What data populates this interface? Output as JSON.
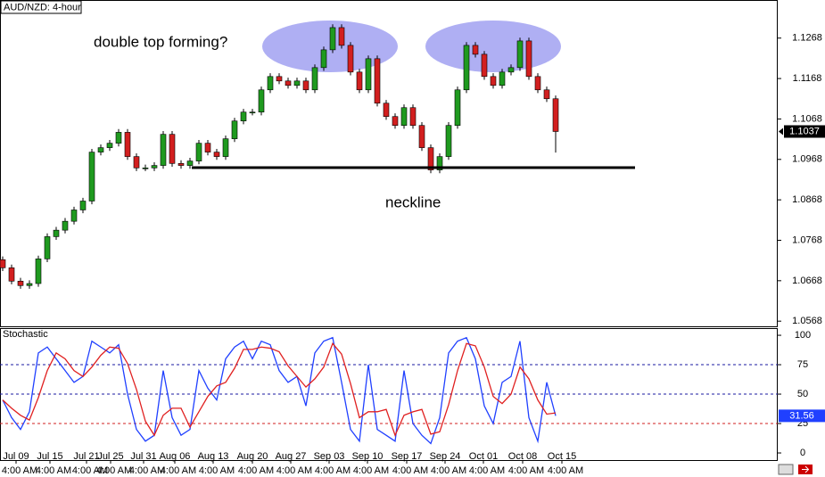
{
  "chart_data": [
    {
      "type": "candlestick",
      "title": "AUD/NZD: 4-hour",
      "annotations": [
        "double top forming?",
        "neckline"
      ],
      "up_color": "#1f9a1f",
      "down_color": "#d21f1f",
      "xlim": [
        -0.3,
        86.9
      ],
      "ylim": [
        1.0553,
        1.136
      ],
      "yticks": [
        1.1268,
        1.1168,
        1.1068,
        1.0968,
        1.0868,
        1.0768,
        1.0668,
        1.0568
      ],
      "open": [
        1.072,
        1.07,
        1.0667,
        1.0656,
        1.0661,
        1.0722,
        1.0777,
        1.0793,
        1.0815,
        1.0843,
        1.0865,
        1.0986,
        1.0997,
        1.1008,
        1.1035,
        1.0975,
        1.0947,
        1.0947,
        1.0953,
        1.103,
        1.0958,
        1.0953,
        1.0964,
        1.1008,
        1.0986,
        1.0975,
        1.1019,
        1.1063,
        1.1085,
        1.1085,
        1.114,
        1.1173,
        1.1162,
        1.1151,
        1.1162,
        1.114,
        1.1195,
        1.1239,
        1.1294,
        1.125,
        1.1184,
        1.114,
        1.1217,
        1.1107,
        1.1074,
        1.1052,
        1.1096,
        1.1052,
        1.0997,
        1.0942,
        1.0975,
        1.1052,
        1.114,
        1.125,
        1.1228,
        1.1173,
        1.1151,
        1.1184,
        1.1195,
        1.1261,
        1.1173,
        1.114,
        1.1118
      ],
      "high": [
        1.0728,
        1.0708,
        1.0675,
        1.0669,
        1.073,
        1.0785,
        1.0801,
        1.0823,
        1.0851,
        1.0873,
        1.0994,
        1.1005,
        1.1016,
        1.1043,
        1.1043,
        1.0983,
        1.0955,
        1.0961,
        1.1038,
        1.1038,
        1.0966,
        1.0972,
        1.1016,
        1.1016,
        1.0994,
        1.1027,
        1.1071,
        1.1093,
        1.1093,
        1.1148,
        1.1181,
        1.1181,
        1.117,
        1.117,
        1.117,
        1.1203,
        1.1247,
        1.1302,
        1.1302,
        1.1258,
        1.1192,
        1.1225,
        1.1225,
        1.1115,
        1.1082,
        1.1104,
        1.1104,
        1.106,
        1.1005,
        1.0983,
        1.106,
        1.1148,
        1.1258,
        1.1258,
        1.1236,
        1.1181,
        1.1192,
        1.1203,
        1.1269,
        1.1269,
        1.1181,
        1.1148,
        1.1126
      ],
      "low": [
        1.0692,
        1.0659,
        1.0648,
        1.0648,
        1.0653,
        1.0714,
        1.0769,
        1.0785,
        1.0807,
        1.0835,
        1.0857,
        1.0978,
        1.0989,
        1.1,
        1.0967,
        1.0939,
        1.0939,
        1.0939,
        1.0945,
        1.095,
        1.0945,
        1.0945,
        1.0956,
        1.0978,
        1.0967,
        1.0967,
        1.1011,
        1.1055,
        1.1077,
        1.1077,
        1.1132,
        1.1154,
        1.1143,
        1.1143,
        1.1132,
        1.1132,
        1.1187,
        1.1231,
        1.1242,
        1.1176,
        1.1132,
        1.1132,
        1.1099,
        1.1066,
        1.1044,
        1.1044,
        1.1044,
        1.0989,
        1.0934,
        1.0934,
        1.0967,
        1.1044,
        1.1132,
        1.122,
        1.1165,
        1.1143,
        1.1143,
        1.1176,
        1.1187,
        1.1165,
        1.1132,
        1.111,
        1.0985
      ],
      "close": [
        1.07,
        1.0667,
        1.0656,
        1.0661,
        1.0722,
        1.0777,
        1.0793,
        1.0815,
        1.0843,
        1.0865,
        1.0986,
        1.0997,
        1.1008,
        1.1035,
        1.0975,
        1.0947,
        1.0947,
        1.0953,
        1.103,
        1.0958,
        1.0953,
        1.0964,
        1.1008,
        1.0986,
        1.0975,
        1.1019,
        1.1063,
        1.1085,
        1.1085,
        1.114,
        1.1173,
        1.1162,
        1.1151,
        1.1162,
        1.114,
        1.1195,
        1.1239,
        1.1294,
        1.125,
        1.1184,
        1.114,
        1.1217,
        1.1107,
        1.1074,
        1.1052,
        1.1096,
        1.1052,
        1.0997,
        1.0942,
        1.0975,
        1.1052,
        1.114,
        1.125,
        1.1228,
        1.1173,
        1.1151,
        1.1184,
        1.1195,
        1.1261,
        1.1173,
        1.114,
        1.1118,
        1.1037
      ]
    },
    {
      "type": "line",
      "title": "Stochastic",
      "xlim": [
        -0.3,
        86.9
      ],
      "ylim": [
        -6.8,
        106.1
      ],
      "yticks": [
        100,
        75,
        50,
        25,
        0
      ],
      "levels": [
        75,
        50,
        25
      ],
      "level_colors": [
        "#1a1aa0",
        "#1a1aa0",
        "#d21f1f"
      ],
      "series": [
        {
          "color": "#2040ff",
          "values": [
            45,
            30,
            20,
            35,
            85,
            90,
            80,
            70,
            60,
            65,
            95,
            90,
            85,
            92,
            50,
            20,
            10,
            15,
            70,
            30,
            15,
            20,
            70,
            55,
            45,
            80,
            90,
            95,
            80,
            95,
            92,
            70,
            60,
            65,
            40,
            85,
            95,
            98,
            60,
            20,
            10,
            75,
            20,
            15,
            10,
            70,
            25,
            15,
            8,
            30,
            85,
            95,
            98,
            80,
            40,
            25,
            60,
            65,
            95,
            30,
            10,
            60,
            31.56
          ]
        },
        {
          "color": "#e02020",
          "values": [
            45,
            38,
            32,
            28,
            47,
            70,
            85,
            80,
            70,
            65,
            73,
            83,
            90,
            89,
            76,
            54,
            27,
            15,
            32,
            38,
            38,
            22,
            35,
            48,
            57,
            60,
            72,
            88,
            88,
            90,
            89,
            86,
            74,
            65,
            56,
            63,
            73,
            93,
            84,
            59,
            30,
            35,
            35,
            37,
            15,
            32,
            35,
            37,
            16,
            18,
            41,
            70,
            93,
            91,
            73,
            48,
            42,
            50,
            73,
            63,
            45,
            33,
            34
          ]
        }
      ],
      "xticks": [
        {
          "value": 1.5,
          "label": "Jul 09"
        },
        {
          "value": 5.3,
          "label": "Jul 15"
        },
        {
          "value": 9.4,
          "label": "Jul 21"
        },
        {
          "value": 12.1,
          "label": "Jul 25"
        },
        {
          "value": 15.8,
          "label": "Jul 31"
        },
        {
          "value": 19.3,
          "label": "Aug 06"
        },
        {
          "value": 23.6,
          "label": "Aug 13"
        },
        {
          "value": 28,
          "label": "Aug 20"
        },
        {
          "value": 32.3,
          "label": "Aug 27"
        },
        {
          "value": 36.6,
          "label": "Sep 03"
        },
        {
          "value": 40.9,
          "label": "Sep 10"
        },
        {
          "value": 45.3,
          "label": "Sep 17"
        },
        {
          "value": 49.6,
          "label": "Sep 24"
        },
        {
          "value": 53.9,
          "label": "Oct 01"
        },
        {
          "value": 58.3,
          "label": "Oct 08"
        },
        {
          "value": 62.7,
          "label": "Oct 15"
        }
      ],
      "time_labels": [
        "4:00 AM",
        "4:00 AM",
        "4:00 AM",
        "4:00 AM",
        "4:00 AM",
        "4:00 AM",
        "4:00 AM",
        "4:00 AM",
        "4:00 AM",
        "4:00 AM",
        "4:00 AM",
        "4:00 AM",
        "4:00 AM",
        "4:00 AM",
        "4:00 AM",
        "4:00 AM"
      ]
    }
  ]
}
